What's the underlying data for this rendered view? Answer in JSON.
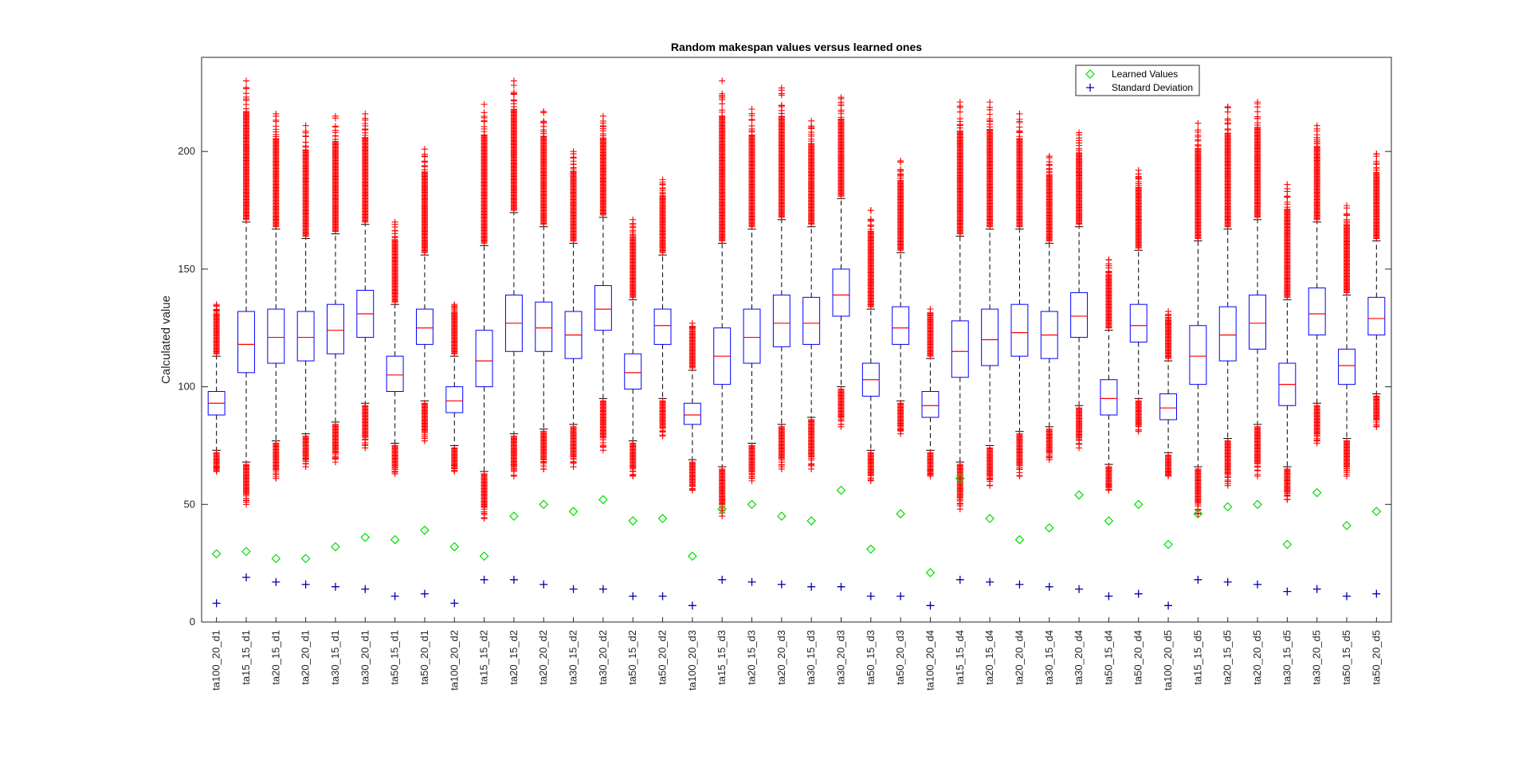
{
  "chart_data": {
    "type": "boxplot",
    "title": "Random makespan values versus learned ones",
    "ylabel": "Calculated value",
    "xlabel": "",
    "ylim": [
      0,
      240
    ],
    "yticks": [
      0,
      50,
      100,
      150,
      200
    ],
    "grid": false,
    "legend_position": "top-right",
    "colors": {
      "box": "#0000ff",
      "median": "#ff0000",
      "whisker": "#000000",
      "outlier": "#ff0000",
      "learned": "#00dd00",
      "stddev": "#0000aa"
    },
    "legend": [
      {
        "label": "Learned Values",
        "marker": "diamond"
      },
      {
        "label": "Standard Deviation",
        "marker": "plus"
      }
    ],
    "categories": [
      "ta100_20_d1",
      "ta15_15_d1",
      "ta20_15_d1",
      "ta20_20_d1",
      "ta30_15_d1",
      "ta30_20_d1",
      "ta50_15_d1",
      "ta50_20_d1",
      "ta100_20_d2",
      "ta15_15_d2",
      "ta20_15_d2",
      "ta20_20_d2",
      "ta30_15_d2",
      "ta30_20_d2",
      "ta50_15_d2",
      "ta50_20_d2",
      "ta100_20_d3",
      "ta15_15_d3",
      "ta20_15_d3",
      "ta20_20_d3",
      "ta30_15_d3",
      "ta30_20_d3",
      "ta50_15_d3",
      "ta50_20_d3",
      "ta100_20_d4",
      "ta15_15_d4",
      "ta20_15_d4",
      "ta20_20_d4",
      "ta30_15_d4",
      "ta30_20_d4",
      "ta50_15_d4",
      "ta50_20_d4",
      "ta100_20_d5",
      "ta15_15_d5",
      "ta20_15_d5",
      "ta20_20_d5",
      "ta30_15_d5",
      "ta30_20_d5",
      "ta50_15_d5",
      "ta50_20_d5"
    ],
    "boxes": [
      {
        "q1": 88,
        "median": 93,
        "q3": 98,
        "whisker_low": 73,
        "whisker_high": 113,
        "out_low_max": 72,
        "out_low_min": 64,
        "out_high_min": 114,
        "out_high_max": 135
      },
      {
        "q1": 106,
        "median": 118,
        "q3": 132,
        "whisker_low": 68,
        "whisker_high": 170,
        "out_low_max": 67,
        "out_low_min": 50,
        "out_high_min": 171,
        "out_high_max": 230
      },
      {
        "q1": 110,
        "median": 121,
        "q3": 133,
        "whisker_low": 77,
        "whisker_high": 167,
        "out_low_max": 76,
        "out_low_min": 61,
        "out_high_min": 168,
        "out_high_max": 216
      },
      {
        "q1": 111,
        "median": 121,
        "q3": 132,
        "whisker_low": 80,
        "whisker_high": 163,
        "out_low_max": 79,
        "out_low_min": 66,
        "out_high_min": 164,
        "out_high_max": 211
      },
      {
        "q1": 114,
        "median": 124,
        "q3": 135,
        "whisker_low": 85,
        "whisker_high": 165,
        "out_low_max": 84,
        "out_low_min": 68,
        "out_high_min": 166,
        "out_high_max": 215
      },
      {
        "q1": 121,
        "median": 131,
        "q3": 141,
        "whisker_low": 93,
        "whisker_high": 169,
        "out_low_max": 92,
        "out_low_min": 74,
        "out_high_min": 170,
        "out_high_max": 216
      },
      {
        "q1": 98,
        "median": 105,
        "q3": 113,
        "whisker_low": 76,
        "whisker_high": 135,
        "out_low_max": 75,
        "out_low_min": 63,
        "out_high_min": 136,
        "out_high_max": 170
      },
      {
        "q1": 118,
        "median": 125,
        "q3": 133,
        "whisker_low": 94,
        "whisker_high": 156,
        "out_low_max": 93,
        "out_low_min": 77,
        "out_high_min": 157,
        "out_high_max": 201
      },
      {
        "q1": 89,
        "median": 94,
        "q3": 100,
        "whisker_low": 75,
        "whisker_high": 113,
        "out_low_max": 74,
        "out_low_min": 64,
        "out_high_min": 114,
        "out_high_max": 135
      },
      {
        "q1": 100,
        "median": 111,
        "q3": 124,
        "whisker_low": 64,
        "whisker_high": 160,
        "out_low_max": 63,
        "out_low_min": 44,
        "out_high_min": 161,
        "out_high_max": 220
      },
      {
        "q1": 115,
        "median": 127,
        "q3": 139,
        "whisker_low": 80,
        "whisker_high": 174,
        "out_low_max": 79,
        "out_low_min": 62,
        "out_high_min": 175,
        "out_high_max": 230
      },
      {
        "q1": 115,
        "median": 125,
        "q3": 136,
        "whisker_low": 82,
        "whisker_high": 168,
        "out_low_max": 81,
        "out_low_min": 65,
        "out_high_min": 169,
        "out_high_max": 217
      },
      {
        "q1": 112,
        "median": 122,
        "q3": 132,
        "whisker_low": 84,
        "whisker_high": 161,
        "out_low_max": 83,
        "out_low_min": 66,
        "out_high_min": 162,
        "out_high_max": 200
      },
      {
        "q1": 124,
        "median": 133,
        "q3": 143,
        "whisker_low": 95,
        "whisker_high": 172,
        "out_low_max": 94,
        "out_low_min": 73,
        "out_high_min": 173,
        "out_high_max": 215
      },
      {
        "q1": 99,
        "median": 106,
        "q3": 114,
        "whisker_low": 77,
        "whisker_high": 137,
        "out_low_max": 76,
        "out_low_min": 62,
        "out_high_min": 138,
        "out_high_max": 171
      },
      {
        "q1": 118,
        "median": 126,
        "q3": 133,
        "whisker_low": 95,
        "whisker_high": 156,
        "out_low_max": 94,
        "out_low_min": 79,
        "out_high_min": 157,
        "out_high_max": 188
      },
      {
        "q1": 84,
        "median": 88,
        "q3": 93,
        "whisker_low": 69,
        "whisker_high": 107,
        "out_low_max": 68,
        "out_low_min": 56,
        "out_high_min": 108,
        "out_high_max": 127
      },
      {
        "q1": 101,
        "median": 113,
        "q3": 125,
        "whisker_low": 66,
        "whisker_high": 161,
        "out_low_max": 65,
        "out_low_min": 45,
        "out_high_min": 162,
        "out_high_max": 230
      },
      {
        "q1": 110,
        "median": 121,
        "q3": 133,
        "whisker_low": 76,
        "whisker_high": 167,
        "out_low_max": 75,
        "out_low_min": 60,
        "out_high_min": 168,
        "out_high_max": 218
      },
      {
        "q1": 117,
        "median": 127,
        "q3": 139,
        "whisker_low": 84,
        "whisker_high": 171,
        "out_low_max": 83,
        "out_low_min": 65,
        "out_high_min": 172,
        "out_high_max": 227
      },
      {
        "q1": 118,
        "median": 127,
        "q3": 138,
        "whisker_low": 87,
        "whisker_high": 168,
        "out_low_max": 86,
        "out_low_min": 65,
        "out_high_min": 169,
        "out_high_max": 213
      },
      {
        "q1": 130,
        "median": 139,
        "q3": 150,
        "whisker_low": 100,
        "whisker_high": 180,
        "out_low_max": 99,
        "out_low_min": 83,
        "out_high_min": 181,
        "out_high_max": 223
      },
      {
        "q1": 96,
        "median": 103,
        "q3": 110,
        "whisker_low": 73,
        "whisker_high": 133,
        "out_low_max": 72,
        "out_low_min": 60,
        "out_high_min": 134,
        "out_high_max": 175
      },
      {
        "q1": 118,
        "median": 125,
        "q3": 134,
        "whisker_low": 94,
        "whisker_high": 157,
        "out_low_max": 93,
        "out_low_min": 80,
        "out_high_min": 158,
        "out_high_max": 196
      },
      {
        "q1": 87,
        "median": 92,
        "q3": 98,
        "whisker_low": 73,
        "whisker_high": 112,
        "out_low_max": 72,
        "out_low_min": 62,
        "out_high_min": 113,
        "out_high_max": 133
      },
      {
        "q1": 104,
        "median": 115,
        "q3": 128,
        "whisker_low": 68,
        "whisker_high": 164,
        "out_low_max": 67,
        "out_low_min": 48,
        "out_high_min": 165,
        "out_high_max": 221
      },
      {
        "q1": 109,
        "median": 120,
        "q3": 133,
        "whisker_low": 75,
        "whisker_high": 167,
        "out_low_max": 74,
        "out_low_min": 58,
        "out_high_min": 168,
        "out_high_max": 221
      },
      {
        "q1": 113,
        "median": 123,
        "q3": 135,
        "whisker_low": 81,
        "whisker_high": 167,
        "out_low_max": 80,
        "out_low_min": 62,
        "out_high_min": 168,
        "out_high_max": 216
      },
      {
        "q1": 112,
        "median": 122,
        "q3": 132,
        "whisker_low": 83,
        "whisker_high": 161,
        "out_low_max": 82,
        "out_low_min": 69,
        "out_high_min": 162,
        "out_high_max": 198
      },
      {
        "q1": 121,
        "median": 130,
        "q3": 140,
        "whisker_low": 92,
        "whisker_high": 168,
        "out_low_max": 91,
        "out_low_min": 74,
        "out_high_min": 169,
        "out_high_max": 208
      },
      {
        "q1": 88,
        "median": 95,
        "q3": 103,
        "whisker_low": 67,
        "whisker_high": 124,
        "out_low_max": 66,
        "out_low_min": 56,
        "out_high_min": 125,
        "out_high_max": 154
      },
      {
        "q1": 119,
        "median": 126,
        "q3": 135,
        "whisker_low": 95,
        "whisker_high": 158,
        "out_low_max": 94,
        "out_low_min": 81,
        "out_high_min": 159,
        "out_high_max": 192
      },
      {
        "q1": 86,
        "median": 91,
        "q3": 97,
        "whisker_low": 72,
        "whisker_high": 111,
        "out_low_max": 71,
        "out_low_min": 62,
        "out_high_min": 112,
        "out_high_max": 132
      },
      {
        "q1": 101,
        "median": 113,
        "q3": 126,
        "whisker_low": 66,
        "whisker_high": 162,
        "out_low_max": 65,
        "out_low_min": 46,
        "out_high_min": 163,
        "out_high_max": 212
      },
      {
        "q1": 111,
        "median": 122,
        "q3": 134,
        "whisker_low": 78,
        "whisker_high": 167,
        "out_low_max": 77,
        "out_low_min": 58,
        "out_high_min": 168,
        "out_high_max": 219
      },
      {
        "q1": 116,
        "median": 127,
        "q3": 139,
        "whisker_low": 84,
        "whisker_high": 171,
        "out_low_max": 83,
        "out_low_min": 62,
        "out_high_min": 172,
        "out_high_max": 221
      },
      {
        "q1": 92,
        "median": 101,
        "q3": 110,
        "whisker_low": 66,
        "whisker_high": 137,
        "out_low_max": 65,
        "out_low_min": 52,
        "out_high_min": 138,
        "out_high_max": 186
      },
      {
        "q1": 122,
        "median": 131,
        "q3": 142,
        "whisker_low": 93,
        "whisker_high": 170,
        "out_low_max": 92,
        "out_low_min": 76,
        "out_high_min": 171,
        "out_high_max": 211
      },
      {
        "q1": 101,
        "median": 109,
        "q3": 116,
        "whisker_low": 78,
        "whisker_high": 139,
        "out_low_max": 77,
        "out_low_min": 62,
        "out_high_min": 140,
        "out_high_max": 177
      },
      {
        "q1": 122,
        "median": 129,
        "q3": 138,
        "whisker_low": 97,
        "whisker_high": 162,
        "out_low_max": 96,
        "out_low_min": 83,
        "out_high_min": 163,
        "out_high_max": 199
      }
    ],
    "learned_values": [
      29,
      30,
      27,
      27,
      32,
      36,
      35,
      39,
      32,
      28,
      45,
      50,
      47,
      52,
      43,
      44,
      28,
      48,
      50,
      45,
      43,
      56,
      31,
      46,
      21,
      61,
      44,
      35,
      40,
      54,
      43,
      50,
      33,
      46,
      49,
      50,
      33,
      55,
      41,
      47
    ],
    "standard_deviation": [
      8,
      19,
      17,
      16,
      15,
      14,
      11,
      12,
      8,
      18,
      18,
      16,
      14,
      14,
      11,
      11,
      7,
      18,
      17,
      16,
      15,
      15,
      11,
      11,
      7,
      18,
      17,
      16,
      15,
      14,
      11,
      12,
      7,
      18,
      17,
      16,
      13,
      14,
      11,
      12
    ]
  }
}
